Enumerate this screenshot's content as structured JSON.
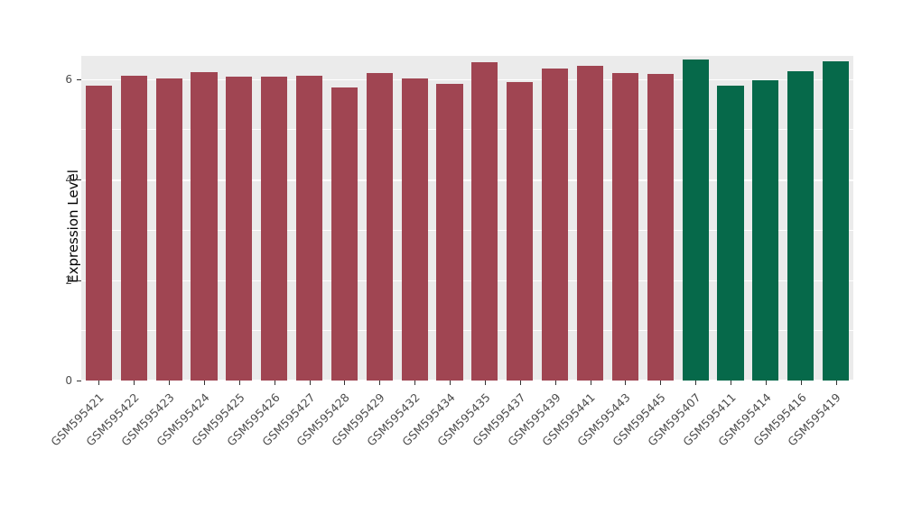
{
  "chart_data": {
    "type": "bar",
    "title": "",
    "xlabel": "",
    "ylabel": "Expression Level",
    "ylim": [
      0,
      6.46
    ],
    "yticks": [
      0,
      2,
      4,
      6
    ],
    "grid": "on",
    "legend": "none",
    "panel_background": "#EBEBEB",
    "gridline_color": "#ffffff",
    "categories": [
      "GSM595421",
      "GSM595422",
      "GSM595423",
      "GSM595424",
      "GSM595425",
      "GSM595426",
      "GSM595427",
      "GSM595428",
      "GSM595429",
      "GSM595432",
      "GSM595434",
      "GSM595435",
      "GSM595437",
      "GSM595439",
      "GSM595441",
      "GSM595443",
      "GSM595445",
      "GSM595407",
      "GSM595411",
      "GSM595414",
      "GSM595416",
      "GSM595419"
    ],
    "values": [
      5.86,
      6.06,
      6.01,
      6.14,
      6.05,
      6.04,
      6.06,
      5.84,
      6.12,
      6.01,
      5.91,
      6.33,
      5.94,
      6.21,
      6.26,
      6.12,
      6.11,
      6.38,
      5.87,
      5.97,
      6.16,
      6.36
    ],
    "groups": [
      "group1",
      "group1",
      "group1",
      "group1",
      "group1",
      "group1",
      "group1",
      "group1",
      "group1",
      "group1",
      "group1",
      "group1",
      "group1",
      "group1",
      "group1",
      "group1",
      "group1",
      "group2",
      "group2",
      "group2",
      "group2",
      "group2"
    ],
    "group_colors": {
      "group1": "#A04552",
      "group2": "#06694A"
    }
  }
}
